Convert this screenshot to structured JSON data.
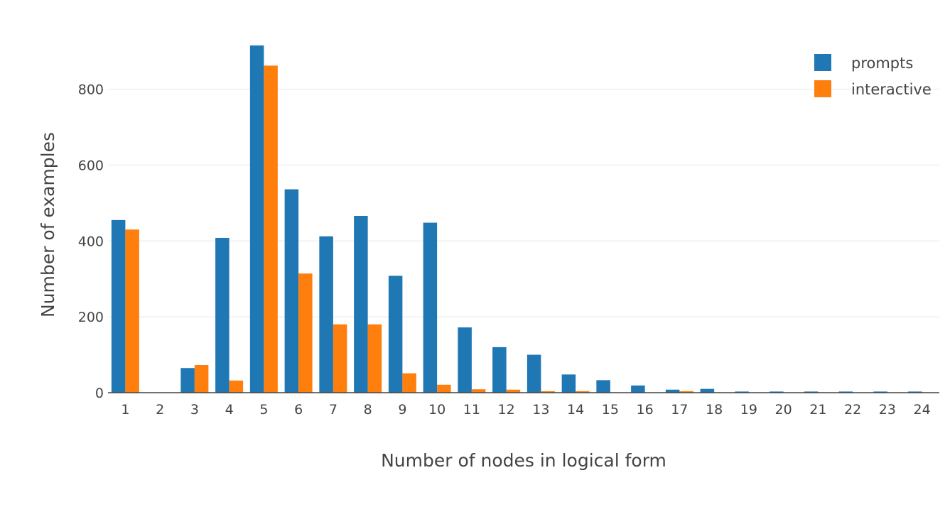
{
  "chart_data": {
    "type": "bar",
    "title": "",
    "xlabel": "Number of nodes in logical form",
    "ylabel": "Number of examples",
    "categories": [
      "1",
      "2",
      "3",
      "4",
      "5",
      "6",
      "7",
      "8",
      "9",
      "10",
      "11",
      "12",
      "13",
      "14",
      "15",
      "16",
      "17",
      "18",
      "19",
      "20",
      "21",
      "22",
      "23",
      "24"
    ],
    "series": [
      {
        "name": "prompts",
        "color": "#1f77b4",
        "values": [
          455,
          0,
          65,
          408,
          915,
          536,
          412,
          466,
          308,
          448,
          172,
          120,
          100,
          48,
          33,
          19,
          8,
          10,
          3,
          3,
          3,
          3,
          3,
          3
        ]
      },
      {
        "name": "interactive",
        "color": "#ff7f0e",
        "values": [
          430,
          0,
          73,
          32,
          862,
          314,
          180,
          180,
          51,
          21,
          9,
          8,
          4,
          4,
          0,
          0,
          4,
          0,
          0,
          0,
          0,
          0,
          0,
          0
        ]
      }
    ],
    "yticks": [
      0,
      200,
      400,
      600,
      800
    ],
    "ylim": [
      0,
      960
    ],
    "grid": true,
    "legend": "top-right"
  }
}
